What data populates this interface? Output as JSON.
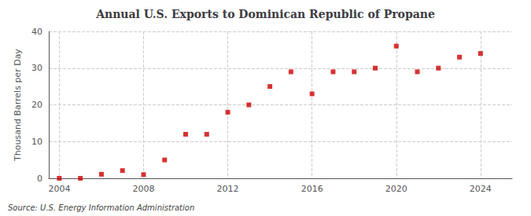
{
  "chart_data": {
    "type": "scatter",
    "title": "Annual U.S. Exports to Dominican Republic of Propane",
    "ylabel": "Thousand Barrels per Day",
    "source": "Source: U.S. Energy Information Administration",
    "x": [
      2004,
      2005,
      2006,
      2007,
      2008,
      2009,
      2010,
      2011,
      2012,
      2013,
      2014,
      2015,
      2016,
      2017,
      2018,
      2019,
      2020,
      2021,
      2022,
      2023,
      2024
    ],
    "values": [
      0.0,
      0.0,
      1.1,
      2.1,
      1.0,
      5.0,
      12.0,
      12.0,
      18.0,
      20.0,
      25.0,
      29.0,
      23.0,
      29.0,
      29.0,
      30.0,
      36.0,
      29.0,
      30.0,
      33.0,
      34.0
    ],
    "color": "#cc0000",
    "marker": "square",
    "xlim": [
      2003.5,
      2025.5
    ],
    "ylim": [
      0,
      40
    ],
    "xticks": [
      2004,
      2008,
      2012,
      2016,
      2020,
      2024
    ],
    "yticks": [
      0,
      10,
      20,
      30,
      40
    ],
    "grid": true
  }
}
